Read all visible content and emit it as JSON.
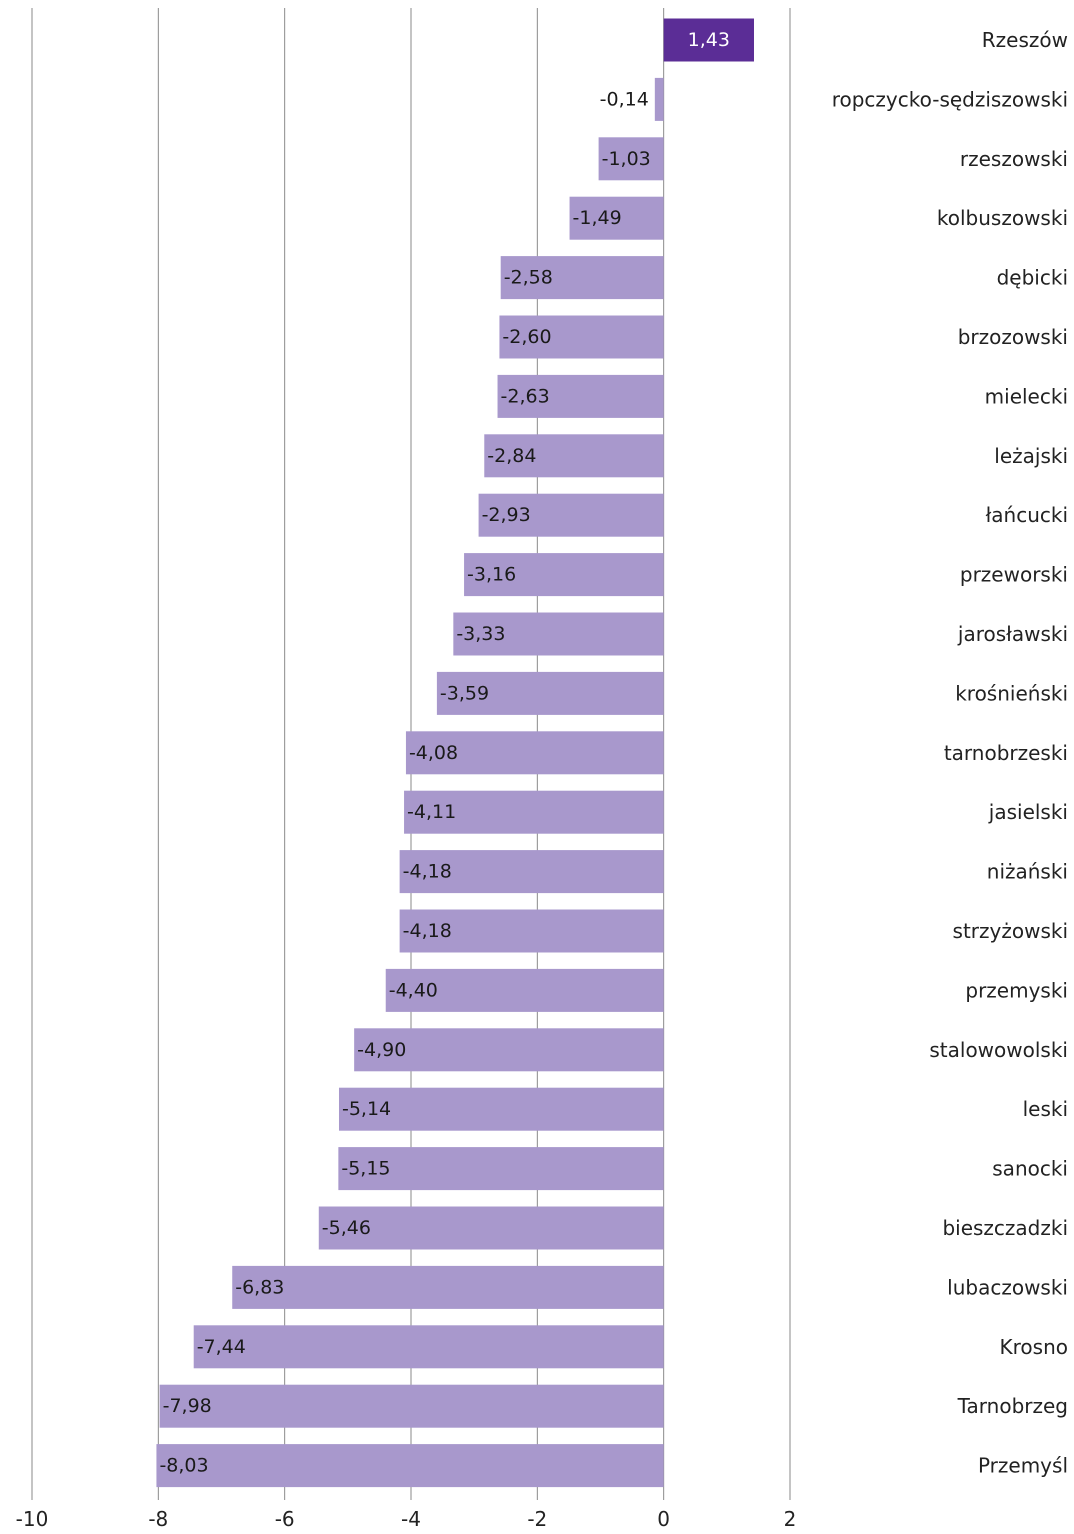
{
  "chart_data": {
    "type": "bar",
    "orientation": "horizontal",
    "categories": [
      "Rzeszów",
      "ropczycko-sędziszowski",
      "rzeszowski",
      "kolbuszowski",
      "dębicki",
      "brzozowski",
      "mielecki",
      "leżajski",
      "łańcucki",
      "przeworski",
      "jarosławski",
      "krośnieński",
      "tarnobrzeski",
      "jasielski",
      "niżański",
      "strzyżowski",
      "przemyski",
      "stalowowolski",
      "leski",
      "sanocki",
      "bieszczadzki",
      "lubaczowski",
      "Krosno",
      "Tarnobrzeg",
      "Przemyśl"
    ],
    "values": [
      1.43,
      -0.14,
      -1.03,
      -1.49,
      -2.58,
      -2.6,
      -2.63,
      -2.84,
      -2.93,
      -3.16,
      -3.33,
      -3.59,
      -4.08,
      -4.11,
      -4.18,
      -4.18,
      -4.4,
      -4.9,
      -5.14,
      -5.15,
      -5.46,
      -6.83,
      -7.44,
      -7.98,
      -8.03
    ],
    "value_labels": [
      "1,43",
      "-0,14",
      "-1,03",
      "-1,49",
      "-2,58",
      "-2,60",
      "-2,63",
      "-2,84",
      "-2,93",
      "-3,16",
      "-3,33",
      "-3,59",
      "-4,08",
      "-4,11",
      "-4,18",
      "-4,18",
      "-4,40",
      "-4,90",
      "-5,14",
      "-5,15",
      "-5,46",
      "-6,83",
      "-7,44",
      "-7,98",
      "-8,03"
    ],
    "xlim": [
      -10,
      2
    ],
    "xticks": [
      -10,
      -8,
      -6,
      -4,
      -2,
      0,
      2
    ],
    "xtick_labels": [
      "-10",
      "-8",
      "-6",
      "-4",
      "-2",
      "0",
      "2"
    ],
    "title": "",
    "xlabel": "",
    "ylabel": "",
    "grid": "vertical",
    "legend": "none",
    "colors": {
      "bar": "#a898cc",
      "highlight": "#5b2d96",
      "grid": "#8a8a8a"
    }
  }
}
